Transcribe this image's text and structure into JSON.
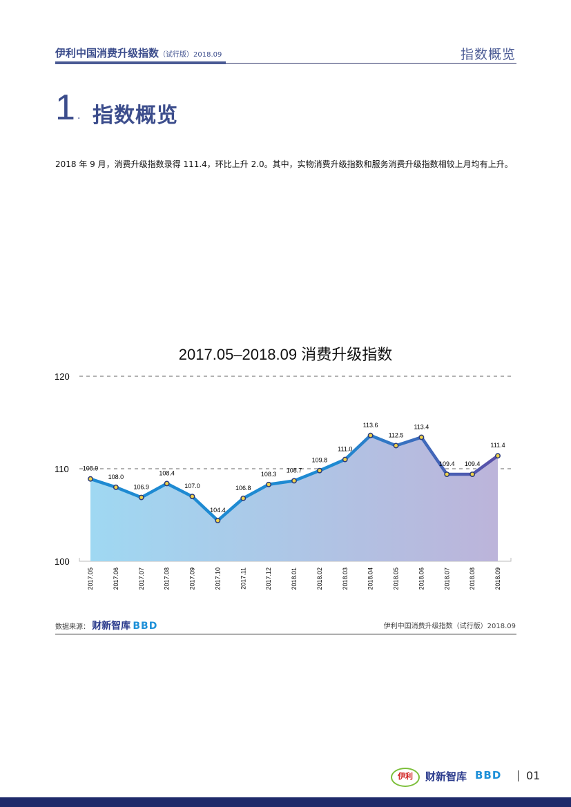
{
  "header": {
    "title": "伊利中国消费升级指数",
    "subtitle": "（试行版）2018.09",
    "section_label": "指数概览"
  },
  "section": {
    "number": "1",
    "dot": ".",
    "title": "指数概览"
  },
  "body_text": "2018 年 9 月，消费升级指数录得 111.4，环比上升 2.0。其中，实物消费升级指数和服务消费升级指数相较上月均有上升。",
  "chart_data": {
    "type": "area",
    "title": "2017.05–2018.09 消费升级指数",
    "xlabel": "",
    "ylabel": "",
    "ylim": [
      100,
      120
    ],
    "yticks": [
      100,
      110,
      120
    ],
    "grid": "dashed horizontal at 110 and 120",
    "legend": "none",
    "categories": [
      "2017.05",
      "2017.06",
      "2017.07",
      "2017.08",
      "2017.09",
      "2017.10",
      "2017.11",
      "2017.12",
      "2018.01",
      "2018.02",
      "2018.03",
      "2018.04",
      "2018.05",
      "2018.06",
      "2018.07",
      "2018.08",
      "2018.09"
    ],
    "series": [
      {
        "name": "消费升级指数",
        "values": [
          108.9,
          108.0,
          106.9,
          108.4,
          107.0,
          104.4,
          106.8,
          108.3,
          108.7,
          109.8,
          111.0,
          113.6,
          112.5,
          113.4,
          109.4,
          109.4,
          111.4
        ],
        "labels": [
          "108.9",
          "108.0",
          "106.9",
          "108.4",
          "107.0",
          "104.4",
          "106.8",
          "108.3",
          "108.7",
          "109.8",
          "111.0",
          "113.6",
          "112.5",
          "113.4",
          "109.4",
          "109.4",
          "111.4"
        ]
      }
    ],
    "colors": {
      "line_start": "#1e8ad2",
      "line_end": "#5a4fa8",
      "fill_start": "#9fd8f2",
      "fill_end": "#bcb4da",
      "marker_fill": "#f0d24a",
      "marker_stroke": "#2a3a7a"
    }
  },
  "footer": {
    "source_label": "数据来源：",
    "source_logo_1": "财新智库",
    "source_logo_2": "BBD",
    "right_text": "伊利中国消费升级指数（试行版）2018.09"
  },
  "page_footer": {
    "logo_yili": "伊利",
    "logo_caixin": "财新智库",
    "logo_bbd": "BBD",
    "page_number": "01"
  }
}
